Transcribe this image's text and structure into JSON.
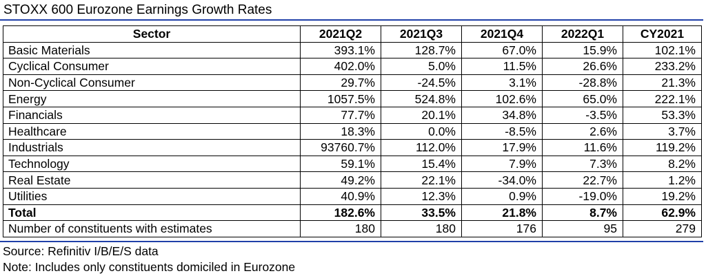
{
  "title": "STOXX 600 Eurozone Earnings Growth Rates",
  "colors": {
    "rule": "#1f3fa8"
  },
  "table": {
    "headers": [
      "Sector",
      "2021Q2",
      "2021Q3",
      "2021Q4",
      "2022Q1",
      "CY2021"
    ],
    "rows": [
      [
        "Basic Materials",
        "393.1%",
        "128.7%",
        "67.0%",
        "15.9%",
        "102.1%"
      ],
      [
        "Cyclical Consumer",
        "402.0%",
        "5.0%",
        "11.5%",
        "26.6%",
        "233.2%"
      ],
      [
        "Non-Cyclical Consumer",
        "29.7%",
        "-24.5%",
        "3.1%",
        "-28.8%",
        "21.3%"
      ],
      [
        "Energy",
        "1057.5%",
        "524.8%",
        "102.6%",
        "65.0%",
        "222.1%"
      ],
      [
        "Financials",
        "77.7%",
        "20.1%",
        "34.8%",
        "-3.5%",
        "53.3%"
      ],
      [
        "Healthcare",
        "18.3%",
        "0.0%",
        "-8.5%",
        "2.6%",
        "3.7%"
      ],
      [
        "Industrials",
        "93760.7%",
        "112.0%",
        "17.9%",
        "11.6%",
        "119.2%"
      ],
      [
        "Technology",
        "59.1%",
        "15.4%",
        "7.9%",
        "7.3%",
        "8.2%"
      ],
      [
        "Real Estate",
        "49.2%",
        "22.1%",
        "-34.0%",
        "22.7%",
        "1.2%"
      ],
      [
        "Utilities",
        "40.9%",
        "12.3%",
        "0.9%",
        "-19.0%",
        "19.2%"
      ]
    ],
    "total": [
      "Total",
      "182.6%",
      "33.5%",
      "21.8%",
      "8.7%",
      "62.9%"
    ],
    "constituents": [
      "Number of constituents with estimates",
      "180",
      "180",
      "176",
      "95",
      "279"
    ]
  },
  "footnotes": {
    "source": "Source: Refinitiv I/B/E/S data",
    "note": "Note: Includes only constituents domiciled in Eurozone"
  }
}
